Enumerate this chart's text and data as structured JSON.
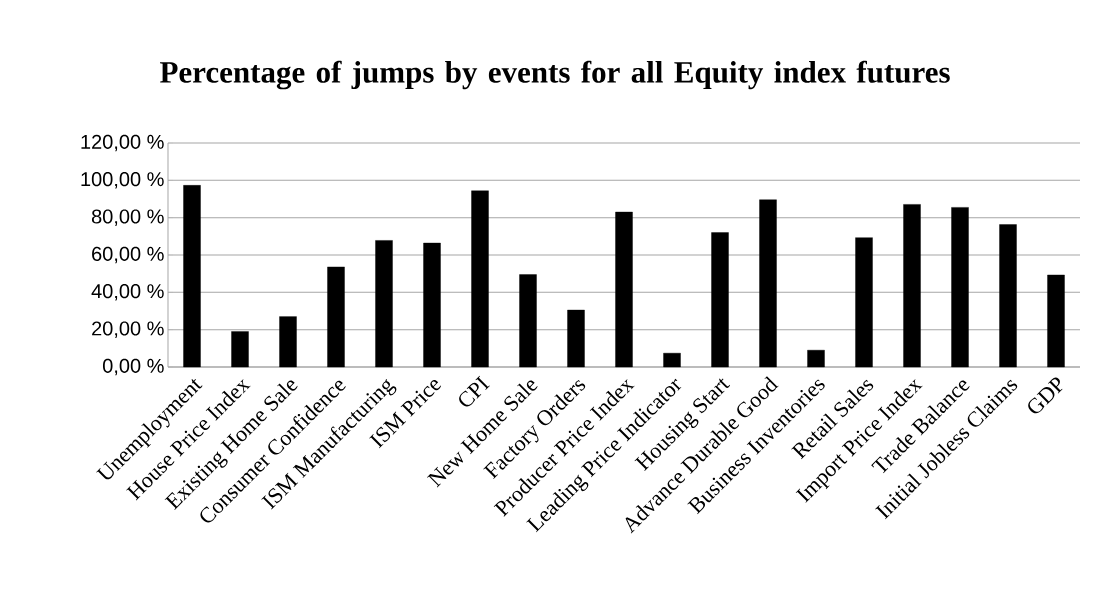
{
  "chart_data": {
    "type": "bar",
    "title": "Percentage of jumps by events for all Equity index futures",
    "categories": [
      "Unemployment",
      "House Price Index",
      "Existing Home Sale",
      "Consumer Confidence",
      "ISM Manufacturing",
      "ISM Price",
      "CPI",
      "New Home Sale",
      "Factory Orders",
      "Producer Price Index",
      "Leading Price Indicator",
      "Housing Start",
      "Advance Durable Good",
      "Business Inventories",
      "Retail Sales",
      "Import Price Index",
      "Trade Balance",
      "Initial Jobless Claims",
      "GDP"
    ],
    "values": [
      97.3,
      19.0,
      27.0,
      53.6,
      67.8,
      66.4,
      94.4,
      49.5,
      30.5,
      83.0,
      7.4,
      72.0,
      89.6,
      9.0,
      69.3,
      87.1,
      85.5,
      76.3,
      49.3
    ],
    "color": "#000000",
    "ylim": [
      0,
      120
    ],
    "yticks": [
      {
        "value": 0,
        "label": "0,00 %"
      },
      {
        "value": 20,
        "label": "20,00 %"
      },
      {
        "value": 40,
        "label": "40,00 %"
      },
      {
        "value": 60,
        "label": "60,00 %"
      },
      {
        "value": 80,
        "label": "80,00 %"
      },
      {
        "value": 100,
        "label": "100,00 %"
      },
      {
        "value": 120,
        "label": "120,00 %"
      }
    ],
    "grid": "y"
  }
}
